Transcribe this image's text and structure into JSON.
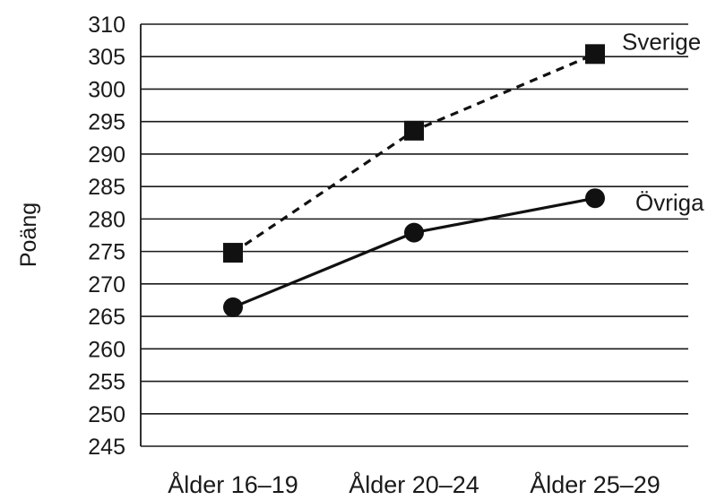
{
  "chart_data": {
    "type": "line",
    "ylabel": "Poäng",
    "xlabel": "",
    "ylim": [
      245,
      310
    ],
    "ytick_step": 5,
    "grid": true,
    "categories": [
      "Ålder 16–19",
      "Ålder 20–24",
      "Ålder 25–29"
    ],
    "series": [
      {
        "name": "Sverige",
        "values": [
          274.8,
          293.6,
          305.4
        ],
        "marker": "square",
        "line_style": "dashed",
        "color": "#111111"
      },
      {
        "name": "Övriga",
        "values": [
          266.4,
          277.9,
          283.2
        ],
        "marker": "circle",
        "line_style": "solid",
        "color": "#111111"
      }
    ]
  }
}
